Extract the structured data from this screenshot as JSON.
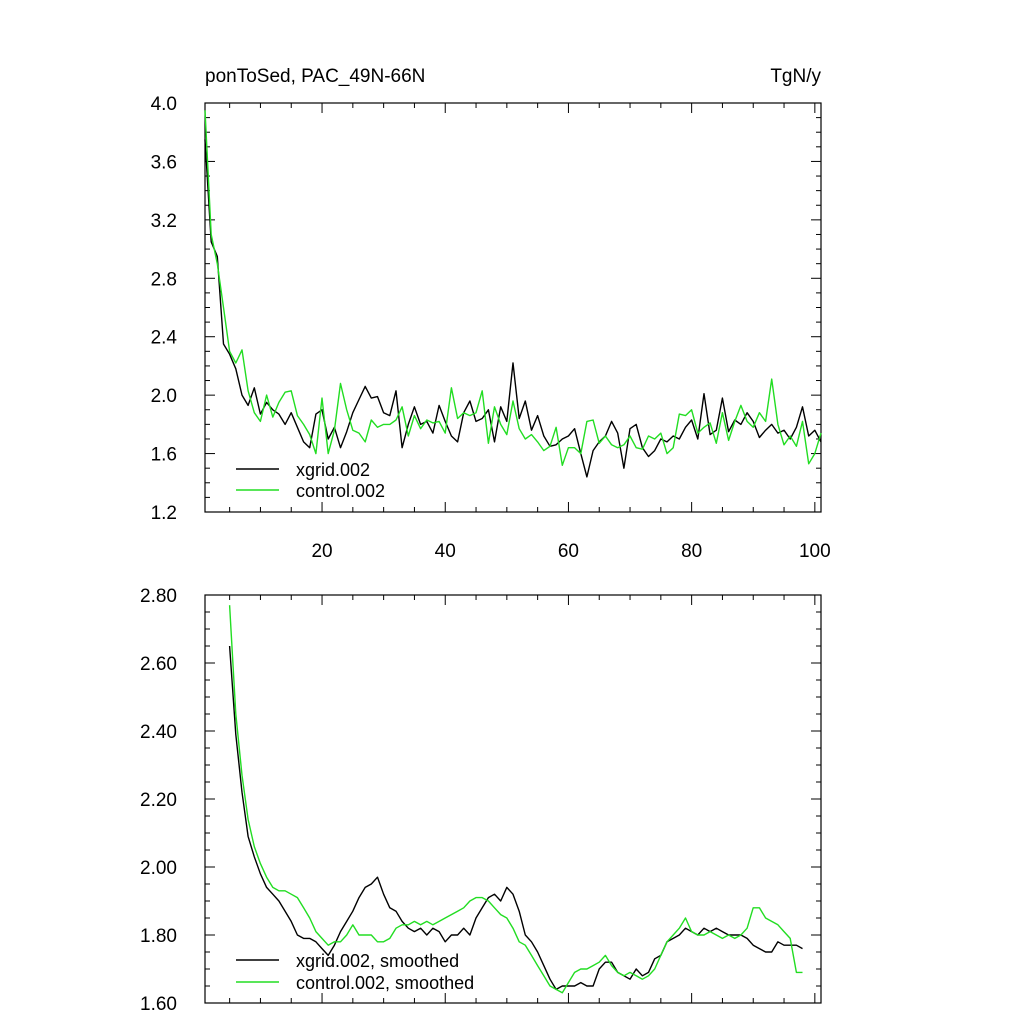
{
  "chart_data": [
    {
      "type": "line",
      "title": "ponToSed, PAC_49N-66N",
      "units": "TgN/y",
      "xlim": [
        1,
        101
      ],
      "ylim": [
        1.2,
        4.0
      ],
      "xticks": [
        20,
        40,
        60,
        80,
        100
      ],
      "yticks": [
        "1.2",
        "1.6",
        "2.0",
        "2.4",
        "2.8",
        "3.2",
        "3.6",
        "4.0"
      ],
      "x": [
        1,
        2,
        3,
        4,
        5,
        6,
        7,
        8,
        9,
        10,
        11,
        12,
        13,
        14,
        15,
        16,
        17,
        18,
        19,
        20,
        21,
        22,
        23,
        24,
        25,
        26,
        27,
        28,
        29,
        30,
        31,
        32,
        33,
        34,
        35,
        36,
        37,
        38,
        39,
        40,
        41,
        42,
        43,
        44,
        45,
        46,
        47,
        48,
        49,
        50,
        51,
        52,
        53,
        54,
        55,
        56,
        57,
        58,
        59,
        60,
        61,
        62,
        63,
        64,
        65,
        66,
        67,
        68,
        69,
        70,
        71,
        72,
        73,
        74,
        75,
        76,
        77,
        78,
        79,
        80,
        81,
        82,
        83,
        84,
        85,
        86,
        87,
        88,
        89,
        90,
        91,
        92,
        93,
        94,
        95,
        96,
        97,
        98,
        99,
        100,
        101
      ],
      "legend": [
        "xgrid.002",
        "control.002"
      ],
      "series": [
        {
          "name": "xgrid.002",
          "color": "#000000",
          "values": [
            3.75,
            3.05,
            2.95,
            2.35,
            2.28,
            2.18,
            2.0,
            1.93,
            2.05,
            1.87,
            1.95,
            1.9,
            1.87,
            1.8,
            1.88,
            1.78,
            1.68,
            1.64,
            1.87,
            1.9,
            1.7,
            1.78,
            1.64,
            1.75,
            1.88,
            1.97,
            2.06,
            1.98,
            1.99,
            1.88,
            1.86,
            2.03,
            1.64,
            1.8,
            1.92,
            1.8,
            1.82,
            1.74,
            1.93,
            1.82,
            1.72,
            1.68,
            1.88,
            1.96,
            1.82,
            1.84,
            1.9,
            1.68,
            1.92,
            1.82,
            2.22,
            1.84,
            1.96,
            1.76,
            1.86,
            1.72,
            1.65,
            1.66,
            1.7,
            1.72,
            1.77,
            1.6,
            1.44,
            1.62,
            1.68,
            1.72,
            1.82,
            1.74,
            1.5,
            1.77,
            1.8,
            1.64,
            1.58,
            1.62,
            1.7,
            1.68,
            1.72,
            1.7,
            1.78,
            1.83,
            1.7,
            2.01,
            1.73,
            1.76,
            1.98,
            1.75,
            1.83,
            1.8,
            1.88,
            1.82,
            1.71,
            1.76,
            1.8,
            1.74,
            1.76,
            1.7,
            1.78,
            1.92,
            1.72,
            1.76,
            1.68
          ]
        },
        {
          "name": "control.002",
          "color": "#22dd22",
          "values": [
            3.95,
            3.1,
            2.9,
            2.6,
            2.3,
            2.22,
            2.31,
            2.03,
            1.88,
            1.82,
            2.0,
            1.85,
            1.95,
            2.02,
            2.03,
            1.86,
            1.8,
            1.73,
            1.6,
            1.98,
            1.6,
            1.76,
            2.08,
            1.9,
            1.76,
            1.74,
            1.68,
            1.83,
            1.78,
            1.8,
            1.8,
            1.83,
            1.92,
            1.72,
            1.86,
            1.77,
            1.83,
            1.81,
            1.82,
            1.74,
            2.05,
            1.84,
            1.88,
            1.86,
            1.88,
            2.03,
            1.67,
            1.92,
            1.8,
            1.73,
            1.96,
            1.77,
            1.7,
            1.73,
            1.68,
            1.62,
            1.65,
            1.78,
            1.52,
            1.64,
            1.64,
            1.6,
            1.82,
            1.83,
            1.67,
            1.72,
            1.66,
            1.64,
            1.66,
            1.72,
            1.64,
            1.63,
            1.72,
            1.7,
            1.74,
            1.6,
            1.64,
            1.87,
            1.86,
            1.9,
            1.74,
            1.78,
            1.81,
            1.67,
            1.88,
            1.69,
            1.82,
            1.93,
            1.82,
            1.78,
            1.88,
            1.82,
            2.11,
            1.8,
            1.66,
            1.72,
            1.65,
            1.82,
            1.53,
            1.6,
            1.74
          ]
        }
      ]
    },
    {
      "type": "line",
      "xlim": [
        1,
        101
      ],
      "ylim": [
        1.6,
        2.8
      ],
      "xticks": [
        20,
        40,
        60,
        80,
        100
      ],
      "yticks": [
        "1.60",
        "1.80",
        "2.00",
        "2.20",
        "2.40",
        "2.60",
        "2.80"
      ],
      "x": [
        5,
        6,
        7,
        8,
        9,
        10,
        11,
        12,
        13,
        14,
        15,
        16,
        17,
        18,
        19,
        20,
        21,
        22,
        23,
        24,
        25,
        26,
        27,
        28,
        29,
        30,
        31,
        32,
        33,
        34,
        35,
        36,
        37,
        38,
        39,
        40,
        41,
        42,
        43,
        44,
        45,
        46,
        47,
        48,
        49,
        50,
        51,
        52,
        53,
        54,
        55,
        56,
        57,
        58,
        59,
        60,
        61,
        62,
        63,
        64,
        65,
        66,
        67,
        68,
        69,
        70,
        71,
        72,
        73,
        74,
        75,
        76,
        77,
        78,
        79,
        80,
        81,
        82,
        83,
        84,
        85,
        86,
        87,
        88,
        89,
        90,
        91,
        92,
        93,
        94,
        95,
        96,
        97,
        98
      ],
      "legend": [
        "xgrid.002, smoothed",
        "control.002, smoothed"
      ],
      "series": [
        {
          "name": "xgrid.002, smoothed",
          "color": "#000000",
          "values": [
            2.65,
            2.39,
            2.22,
            2.09,
            2.03,
            1.98,
            1.94,
            1.92,
            1.9,
            1.87,
            1.84,
            1.8,
            1.79,
            1.79,
            1.78,
            1.76,
            1.74,
            1.77,
            1.81,
            1.84,
            1.87,
            1.91,
            1.94,
            1.95,
            1.97,
            1.92,
            1.88,
            1.87,
            1.84,
            1.82,
            1.81,
            1.82,
            1.8,
            1.82,
            1.81,
            1.78,
            1.8,
            1.8,
            1.82,
            1.8,
            1.85,
            1.88,
            1.91,
            1.92,
            1.9,
            1.94,
            1.92,
            1.87,
            1.8,
            1.78,
            1.75,
            1.71,
            1.67,
            1.64,
            1.65,
            1.65,
            1.65,
            1.66,
            1.65,
            1.65,
            1.7,
            1.72,
            1.72,
            1.69,
            1.68,
            1.67,
            1.7,
            1.68,
            1.69,
            1.73,
            1.74,
            1.78,
            1.79,
            1.8,
            1.82,
            1.81,
            1.8,
            1.82,
            1.81,
            1.82,
            1.81,
            1.8,
            1.8,
            1.8,
            1.79,
            1.77,
            1.76,
            1.75,
            1.75,
            1.78,
            1.77,
            1.77,
            1.77,
            1.76
          ]
        },
        {
          "name": "control.002, smoothed",
          "color": "#22dd22",
          "values": [
            2.77,
            2.45,
            2.27,
            2.14,
            2.06,
            2.01,
            1.97,
            1.94,
            1.93,
            1.93,
            1.92,
            1.91,
            1.88,
            1.85,
            1.81,
            1.79,
            1.77,
            1.78,
            1.78,
            1.8,
            1.83,
            1.8,
            1.8,
            1.8,
            1.78,
            1.78,
            1.79,
            1.82,
            1.83,
            1.83,
            1.84,
            1.83,
            1.84,
            1.83,
            1.84,
            1.85,
            1.86,
            1.87,
            1.88,
            1.9,
            1.91,
            1.91,
            1.9,
            1.88,
            1.86,
            1.85,
            1.82,
            1.78,
            1.77,
            1.74,
            1.71,
            1.68,
            1.65,
            1.64,
            1.63,
            1.66,
            1.69,
            1.7,
            1.7,
            1.71,
            1.72,
            1.74,
            1.71,
            1.69,
            1.68,
            1.69,
            1.68,
            1.67,
            1.68,
            1.7,
            1.74,
            1.78,
            1.8,
            1.82,
            1.85,
            1.81,
            1.8,
            1.8,
            1.81,
            1.8,
            1.79,
            1.8,
            1.79,
            1.8,
            1.82,
            1.88,
            1.88,
            1.85,
            1.84,
            1.83,
            1.81,
            1.79,
            1.69,
            1.69
          ]
        }
      ]
    }
  ]
}
